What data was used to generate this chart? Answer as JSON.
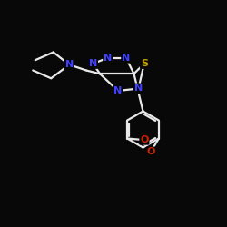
{
  "background_color": "#080808",
  "bond_color": "#e8e8e8",
  "n_color": "#4040ff",
  "s_color": "#c8a000",
  "o_color": "#cc2200",
  "line_width": 1.6,
  "figsize": [
    2.5,
    2.5
  ],
  "dpi": 100,
  "xlim": [
    0,
    10
  ],
  "ylim": [
    0,
    10
  ]
}
